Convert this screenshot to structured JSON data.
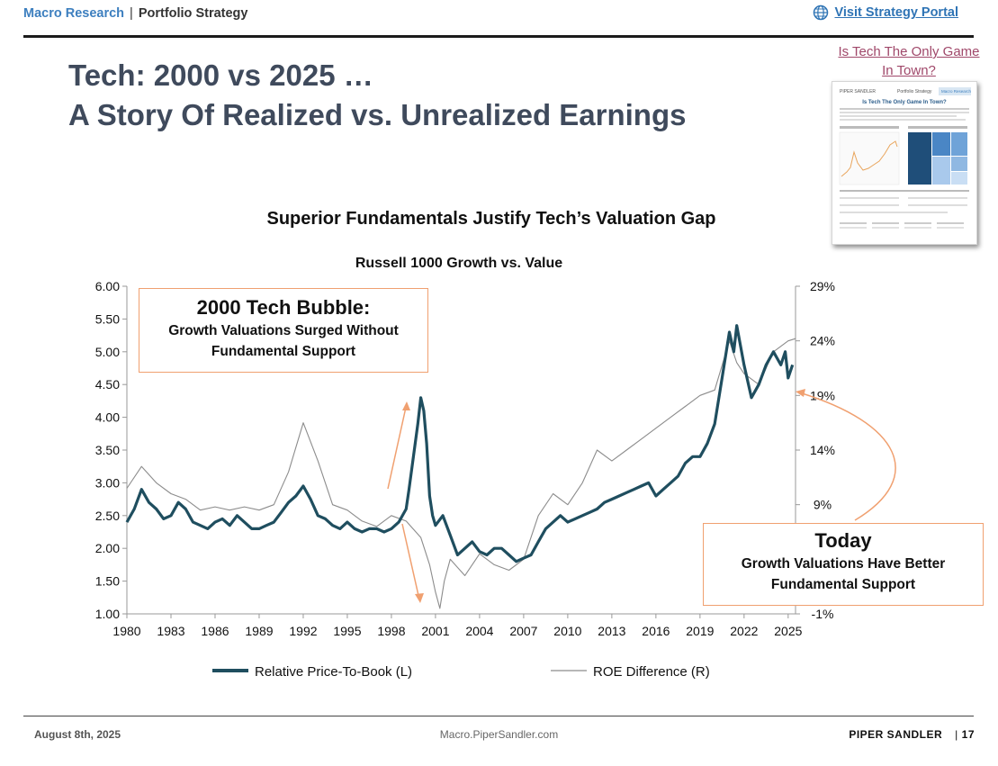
{
  "header": {
    "section": "Macro Research",
    "separator": "|",
    "subsection": "Portfolio Strategy",
    "portal_link": "Visit Strategy Portal"
  },
  "title": {
    "line1": "Tech: 2000 vs 2025 …",
    "line2": "A Story Of Realized vs. Unrealized Earnings"
  },
  "related": {
    "link": "Is Tech The Only Game In Town?",
    "thumb_brand": "PIPER SANDLER",
    "thumb_section": "Portfolio Strategy",
    "thumb_badge": "Macro Research",
    "thumb_title": "Is Tech The Only Game In Town?"
  },
  "colors": {
    "accent_blue": "#3d7fbf",
    "series_price_to_book": "#1f4e5f",
    "series_roe": "#8c8c8c",
    "callout_border": "#f0a070",
    "title_color": "#3f4a5c"
  },
  "callouts": {
    "bubble": {
      "heading": "2000 Tech Bubble:",
      "body_line1": "Growth Valuations Surged Without",
      "body_line2": "Fundamental Support"
    },
    "today": {
      "heading": "Today",
      "body_line1": "Growth Valuations Have Better",
      "body_line2": "Fundamental Support"
    }
  },
  "chart_data": {
    "type": "line",
    "title": "Superior Fundamentals Justify Tech’s Valuation Gap",
    "subtitle": "Russell 1000 Growth vs. Value",
    "x_ticks": [
      "1980",
      "1983",
      "1986",
      "1989",
      "1992",
      "1995",
      "1998",
      "2001",
      "2004",
      "2007",
      "2010",
      "2013",
      "2016",
      "2019",
      "2022",
      "2025"
    ],
    "x_range": [
      1980,
      2025.5
    ],
    "y_left": {
      "range": [
        1.0,
        6.0
      ],
      "ticks": [
        "1.00",
        "1.50",
        "2.00",
        "2.50",
        "3.00",
        "3.50",
        "4.00",
        "4.50",
        "5.00",
        "5.50",
        "6.00"
      ]
    },
    "y_right": {
      "range": [
        -1,
        29
      ],
      "ticks": [
        "-1%",
        "9%",
        "14%",
        "19%",
        "24%",
        "29%"
      ]
    },
    "series": [
      {
        "name": "Relative Price-To-Book (L)",
        "axis": "left",
        "points": [
          [
            1980,
            2.4
          ],
          [
            1980.5,
            2.6
          ],
          [
            1981,
            2.9
          ],
          [
            1981.5,
            2.7
          ],
          [
            1982,
            2.6
          ],
          [
            1982.5,
            2.45
          ],
          [
            1983,
            2.5
          ],
          [
            1983.5,
            2.7
          ],
          [
            1984,
            2.6
          ],
          [
            1984.5,
            2.4
          ],
          [
            1985,
            2.35
          ],
          [
            1985.5,
            2.3
          ],
          [
            1986,
            2.4
          ],
          [
            1986.5,
            2.45
          ],
          [
            1987,
            2.35
          ],
          [
            1987.5,
            2.5
          ],
          [
            1988,
            2.4
          ],
          [
            1988.5,
            2.3
          ],
          [
            1989,
            2.3
          ],
          [
            1989.5,
            2.35
          ],
          [
            1990,
            2.4
          ],
          [
            1990.5,
            2.55
          ],
          [
            1991,
            2.7
          ],
          [
            1991.5,
            2.8
          ],
          [
            1992,
            2.95
          ],
          [
            1992.5,
            2.75
          ],
          [
            1993,
            2.5
          ],
          [
            1993.5,
            2.45
          ],
          [
            1994,
            2.35
          ],
          [
            1994.5,
            2.3
          ],
          [
            1995,
            2.4
          ],
          [
            1995.5,
            2.3
          ],
          [
            1996,
            2.25
          ],
          [
            1996.5,
            2.3
          ],
          [
            1997,
            2.3
          ],
          [
            1997.5,
            2.25
          ],
          [
            1998,
            2.3
          ],
          [
            1998.5,
            2.4
          ],
          [
            1999,
            2.6
          ],
          [
            1999.2,
            2.9
          ],
          [
            1999.5,
            3.4
          ],
          [
            1999.8,
            3.9
          ],
          [
            2000,
            4.3
          ],
          [
            2000.2,
            4.1
          ],
          [
            2000.4,
            3.6
          ],
          [
            2000.6,
            2.8
          ],
          [
            2000.8,
            2.5
          ],
          [
            2001,
            2.35
          ],
          [
            2001.5,
            2.5
          ],
          [
            2002,
            2.2
          ],
          [
            2002.5,
            1.9
          ],
          [
            2003,
            2.0
          ],
          [
            2003.5,
            2.1
          ],
          [
            2004,
            1.95
          ],
          [
            2004.5,
            1.9
          ],
          [
            2005,
            2.0
          ],
          [
            2005.5,
            2.0
          ],
          [
            2006,
            1.9
          ],
          [
            2006.5,
            1.8
          ],
          [
            2007,
            1.85
          ],
          [
            2007.5,
            1.9
          ],
          [
            2008,
            2.1
          ],
          [
            2008.5,
            2.3
          ],
          [
            2009,
            2.4
          ],
          [
            2009.5,
            2.5
          ],
          [
            2010,
            2.4
          ],
          [
            2010.5,
            2.45
          ],
          [
            2011,
            2.5
          ],
          [
            2011.5,
            2.55
          ],
          [
            2012,
            2.6
          ],
          [
            2012.5,
            2.7
          ],
          [
            2013,
            2.75
          ],
          [
            2013.5,
            2.8
          ],
          [
            2014,
            2.85
          ],
          [
            2014.5,
            2.9
          ],
          [
            2015,
            2.95
          ],
          [
            2015.5,
            3.0
          ],
          [
            2016,
            2.8
          ],
          [
            2016.5,
            2.9
          ],
          [
            2017,
            3.0
          ],
          [
            2017.5,
            3.1
          ],
          [
            2018,
            3.3
          ],
          [
            2018.5,
            3.4
          ],
          [
            2019,
            3.4
          ],
          [
            2019.5,
            3.6
          ],
          [
            2020,
            3.9
          ],
          [
            2020.5,
            4.6
          ],
          [
            2021,
            5.3
          ],
          [
            2021.3,
            5.0
          ],
          [
            2021.5,
            5.4
          ],
          [
            2022,
            4.8
          ],
          [
            2022.5,
            4.3
          ],
          [
            2023,
            4.5
          ],
          [
            2023.5,
            4.8
          ],
          [
            2024,
            5.0
          ],
          [
            2024.5,
            4.8
          ],
          [
            2024.8,
            5.0
          ],
          [
            2025,
            4.6
          ],
          [
            2025.3,
            4.8
          ]
        ]
      },
      {
        "name": "ROE Difference (R)",
        "axis": "right",
        "points": [
          [
            1980,
            10.5
          ],
          [
            1981,
            12.5
          ],
          [
            1982,
            11
          ],
          [
            1983,
            10
          ],
          [
            1984,
            9.5
          ],
          [
            1985,
            8.5
          ],
          [
            1986,
            8.8
          ],
          [
            1987,
            8.5
          ],
          [
            1988,
            8.8
          ],
          [
            1989,
            8.5
          ],
          [
            1990,
            9
          ],
          [
            1991,
            12
          ],
          [
            1992,
            16.5
          ],
          [
            1993,
            13
          ],
          [
            1994,
            9
          ],
          [
            1995,
            8.5
          ],
          [
            1996,
            7.5
          ],
          [
            1997,
            7
          ],
          [
            1998,
            8
          ],
          [
            1999,
            7.5
          ],
          [
            2000,
            6
          ],
          [
            2000.6,
            3.5
          ],
          [
            2001,
            1
          ],
          [
            2001.3,
            -0.5
          ],
          [
            2001.6,
            2
          ],
          [
            2002,
            4
          ],
          [
            2003,
            2.5
          ],
          [
            2004,
            4.5
          ],
          [
            2005,
            3.5
          ],
          [
            2006,
            3
          ],
          [
            2007,
            4
          ],
          [
            2008,
            8
          ],
          [
            2009,
            10
          ],
          [
            2010,
            9
          ],
          [
            2011,
            11
          ],
          [
            2012,
            14
          ],
          [
            2013,
            13
          ],
          [
            2014,
            14
          ],
          [
            2015,
            15
          ],
          [
            2016,
            16
          ],
          [
            2017,
            17
          ],
          [
            2018,
            18
          ],
          [
            2019,
            19
          ],
          [
            2020,
            19.5
          ],
          [
            2021,
            24
          ],
          [
            2021.5,
            22
          ],
          [
            2022,
            21
          ],
          [
            2023,
            20
          ],
          [
            2024,
            23
          ],
          [
            2025,
            24
          ],
          [
            2025.5,
            24.2
          ]
        ]
      }
    ],
    "legend": [
      "Relative Price-To-Book (L)",
      "ROE Difference (R)"
    ],
    "legend_position": "bottom"
  },
  "footer": {
    "date": "August 8th, 2025",
    "site": "Macro.PiperSandler.com",
    "brand": "PIPER SANDLER",
    "separator": "|",
    "page": "17"
  }
}
